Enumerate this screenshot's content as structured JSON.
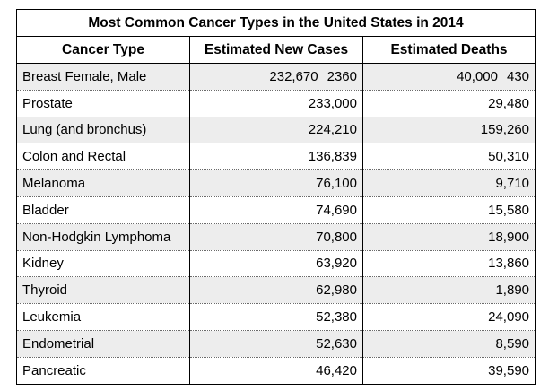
{
  "table": {
    "title": "Most Common Cancer Types in the United States in 2014",
    "headers": [
      "Cancer Type",
      "Estimated New Cases",
      "Estimated Deaths"
    ],
    "rows": [
      {
        "type": "Breast Female, Male",
        "new_cases": "232,670",
        "new_cases_2": "2360",
        "deaths": "40,000",
        "deaths_2": "430"
      },
      {
        "type": "Prostate",
        "new_cases": "233,000",
        "deaths": "29,480"
      },
      {
        "type": "Lung (and bronchus)",
        "new_cases": "224,210",
        "deaths": "159,260"
      },
      {
        "type": "Colon and Rectal",
        "new_cases": "136,839",
        "deaths": "50,310"
      },
      {
        "type": "Melanoma",
        "new_cases": "76,100",
        "deaths": "9,710"
      },
      {
        "type": "Bladder",
        "new_cases": "74,690",
        "deaths": "15,580"
      },
      {
        "type": "Non-Hodgkin Lymphoma",
        "new_cases": "70,800",
        "deaths": "18,900"
      },
      {
        "type": "Kidney",
        "new_cases": "63,920",
        "deaths": "13,860"
      },
      {
        "type": "Thyroid",
        "new_cases": "62,980",
        "deaths": "1,890"
      },
      {
        "type": "Leukemia",
        "new_cases": "52,380",
        "deaths": "24,090"
      },
      {
        "type": "Endometrial",
        "new_cases": "52,630",
        "deaths": "8,590"
      },
      {
        "type": "Pancreatic",
        "new_cases": "46,420",
        "deaths": "39,590"
      }
    ]
  },
  "colors": {
    "shaded_row": "#ededed",
    "border": "#000000",
    "dotted_rule": "#6a6a6a"
  }
}
